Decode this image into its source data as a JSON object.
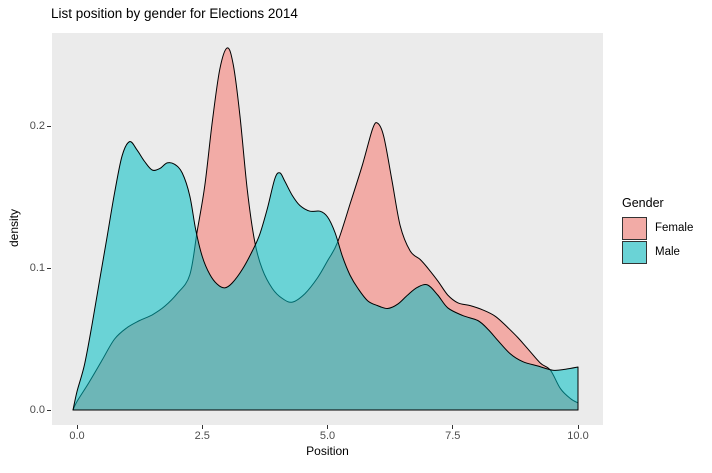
{
  "chart_data": {
    "type": "area",
    "title": "List position by gender for Elections 2014",
    "xlabel": "Position",
    "ylabel": "density",
    "xlim": [
      -0.5,
      10.5
    ],
    "ylim": [
      -0.011,
      0.266
    ],
    "grid": false,
    "legend_position": "right",
    "x_ticks": [
      0,
      2.5,
      5,
      7.5,
      10
    ],
    "x_tick_labels": [
      "0.0",
      "2.5",
      "5.0",
      "7.5",
      "10.0"
    ],
    "y_ticks": [
      0,
      0.1,
      0.2
    ],
    "y_tick_labels": [
      "0.0",
      "0.1",
      "0.2"
    ],
    "series": [
      {
        "name": "Female",
        "fill": "#F2ABA6",
        "stroke": "#000000",
        "points": [
          [
            -0.08,
            0
          ],
          [
            0,
            0.006
          ],
          [
            0.25,
            0.02
          ],
          [
            0.5,
            0.035
          ],
          [
            0.75,
            0.05
          ],
          [
            1,
            0.058
          ],
          [
            1.25,
            0.063
          ],
          [
            1.5,
            0.067
          ],
          [
            1.75,
            0.073
          ],
          [
            2,
            0.082
          ],
          [
            2.25,
            0.095
          ],
          [
            2.4,
            0.126
          ],
          [
            2.55,
            0.158
          ],
          [
            2.7,
            0.203
          ],
          [
            2.85,
            0.24
          ],
          [
            3,
            0.255
          ],
          [
            3.12,
            0.243
          ],
          [
            3.25,
            0.208
          ],
          [
            3.4,
            0.155
          ],
          [
            3.55,
            0.118
          ],
          [
            3.7,
            0.099
          ],
          [
            3.9,
            0.0855
          ],
          [
            4.1,
            0.0785
          ],
          [
            4.3,
            0.076
          ],
          [
            4.55,
            0.082
          ],
          [
            4.8,
            0.093
          ],
          [
            5,
            0.105
          ],
          [
            5.2,
            0.118
          ],
          [
            5.45,
            0.145
          ],
          [
            5.7,
            0.173
          ],
          [
            5.9,
            0.198
          ],
          [
            6,
            0.202
          ],
          [
            6.12,
            0.193
          ],
          [
            6.28,
            0.163
          ],
          [
            6.45,
            0.13
          ],
          [
            6.65,
            0.112
          ],
          [
            6.85,
            0.106
          ],
          [
            7,
            0.1
          ],
          [
            7.2,
            0.091
          ],
          [
            7.4,
            0.081
          ],
          [
            7.6,
            0.0755
          ],
          [
            7.85,
            0.0735
          ],
          [
            8.1,
            0.0705
          ],
          [
            8.35,
            0.066
          ],
          [
            8.6,
            0.058
          ],
          [
            8.8,
            0.051
          ],
          [
            9,
            0.043
          ],
          [
            9.25,
            0.033
          ],
          [
            9.45,
            0.028
          ],
          [
            9.65,
            0.015
          ],
          [
            9.85,
            0.008
          ],
          [
            10,
            0.005
          ]
        ]
      },
      {
        "name": "Male",
        "fill": "rgba(0,191,196,0.55)",
        "stroke": "#000000",
        "points": [
          [
            -0.08,
            0
          ],
          [
            0,
            0.013
          ],
          [
            0.15,
            0.032
          ],
          [
            0.3,
            0.06
          ],
          [
            0.45,
            0.091
          ],
          [
            0.6,
            0.122
          ],
          [
            0.75,
            0.153
          ],
          [
            0.9,
            0.179
          ],
          [
            1.05,
            0.189
          ],
          [
            1.2,
            0.183
          ],
          [
            1.35,
            0.175
          ],
          [
            1.5,
            0.169
          ],
          [
            1.65,
            0.17
          ],
          [
            1.8,
            0.174
          ],
          [
            1.95,
            0.173
          ],
          [
            2.1,
            0.167
          ],
          [
            2.25,
            0.151
          ],
          [
            2.37,
            0.127
          ],
          [
            2.5,
            0.108
          ],
          [
            2.65,
            0.0955
          ],
          [
            2.8,
            0.0885
          ],
          [
            2.95,
            0.086
          ],
          [
            3.1,
            0.0895
          ],
          [
            3.3,
            0.099
          ],
          [
            3.5,
            0.112
          ],
          [
            3.65,
            0.124
          ],
          [
            3.8,
            0.142
          ],
          [
            3.95,
            0.163
          ],
          [
            4.05,
            0.167
          ],
          [
            4.15,
            0.161
          ],
          [
            4.3,
            0.151
          ],
          [
            4.45,
            0.144
          ],
          [
            4.65,
            0.14
          ],
          [
            4.85,
            0.14
          ],
          [
            5,
            0.136
          ],
          [
            5.15,
            0.125
          ],
          [
            5.3,
            0.108
          ],
          [
            5.45,
            0.095
          ],
          [
            5.6,
            0.086
          ],
          [
            5.8,
            0.077
          ],
          [
            6,
            0.0735
          ],
          [
            6.2,
            0.0715
          ],
          [
            6.4,
            0.0745
          ],
          [
            6.6,
            0.081
          ],
          [
            6.8,
            0.0865
          ],
          [
            7,
            0.088
          ],
          [
            7.2,
            0.081
          ],
          [
            7.4,
            0.072
          ],
          [
            7.7,
            0.0665
          ],
          [
            8,
            0.063
          ],
          [
            8.2,
            0.057
          ],
          [
            8.4,
            0.049
          ],
          [
            8.65,
            0.0395
          ],
          [
            8.9,
            0.034
          ],
          [
            9.2,
            0.031
          ],
          [
            9.5,
            0.028
          ],
          [
            9.75,
            0.0287
          ],
          [
            10,
            0.0303
          ]
        ]
      }
    ]
  },
  "legend": {
    "title": "Gender",
    "entries": [
      {
        "label": "Female",
        "swatch": "#F2ABA6"
      },
      {
        "label": "Male",
        "swatch": "#6AD3D6"
      }
    ]
  },
  "colors": {
    "panel_bg": "#EBEBEB",
    "female_base": "#F8766D",
    "male_base": "#00BFC4",
    "outline": "#000000",
    "tick_mark": "#333333",
    "tick_label": "#4D4D4D",
    "text": "#000000"
  }
}
